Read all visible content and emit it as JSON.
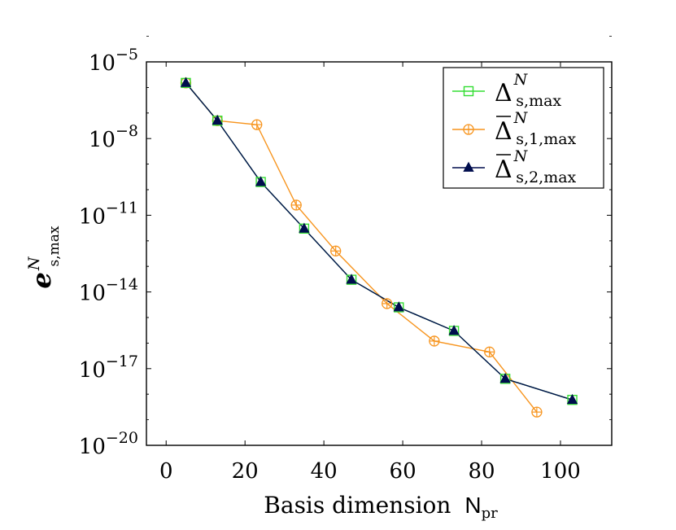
{
  "chart_data": {
    "type": "line",
    "xlabel": "Basis dimension",
    "xlabel_symbol": "N",
    "xlabel_sub": "pr",
    "ylabel_main": "e",
    "ylabel_sup": "N",
    "ylabel_sub": "s,max",
    "xlim": [
      -5,
      113
    ],
    "x_ticks": [
      0,
      20,
      40,
      60,
      80,
      100
    ],
    "y_log": true,
    "ylim_exp": [
      -20,
      -5
    ],
    "y_ticks": [
      {
        "base": "10",
        "exp": "−5",
        "value_exp": -5
      },
      {
        "base": "10",
        "exp": "−8",
        "value_exp": -8
      },
      {
        "base": "10",
        "exp": "−11",
        "value_exp": -11
      },
      {
        "base": "10",
        "exp": "−14",
        "value_exp": -14
      },
      {
        "base": "10",
        "exp": "−17",
        "value_exp": -17
      },
      {
        "base": "10",
        "exp": "−20",
        "value_exp": -20
      }
    ],
    "legend_position": "top-right",
    "series": [
      {
        "name": "Δ",
        "name_sup": "N",
        "name_sub": "s,max",
        "bar": false,
        "color": "#33dd33",
        "marker": "square",
        "x": [
          5,
          13,
          24,
          35,
          47,
          59,
          73,
          86,
          103
        ],
        "y": [
          1.5e-06,
          5e-08,
          2e-10,
          3e-12,
          3e-14,
          2.5e-15,
          3e-16,
          4e-18,
          6e-19
        ]
      },
      {
        "name": "Δ",
        "name_sup": "N",
        "name_sub": "s,1,max",
        "bar": true,
        "color": "#f7941d",
        "marker": "circle-plus",
        "x": [
          5,
          13,
          23,
          33,
          43,
          56,
          68,
          82,
          94
        ],
        "y": [
          1.5e-06,
          5e-08,
          3.5e-08,
          2.5e-11,
          4e-13,
          3.5e-15,
          1.2e-16,
          4.5e-17,
          2e-19
        ]
      },
      {
        "name": "Δ",
        "name_sup": "N",
        "name_sub": "s,2,max",
        "bar": true,
        "color": "#000d4d",
        "marker": "triangle",
        "x": [
          5,
          13,
          24,
          35,
          47,
          59,
          73,
          86,
          103
        ],
        "y": [
          1.5e-06,
          5e-08,
          2e-10,
          3e-12,
          3e-14,
          2.5e-15,
          3e-16,
          4e-18,
          6e-19
        ]
      }
    ]
  }
}
